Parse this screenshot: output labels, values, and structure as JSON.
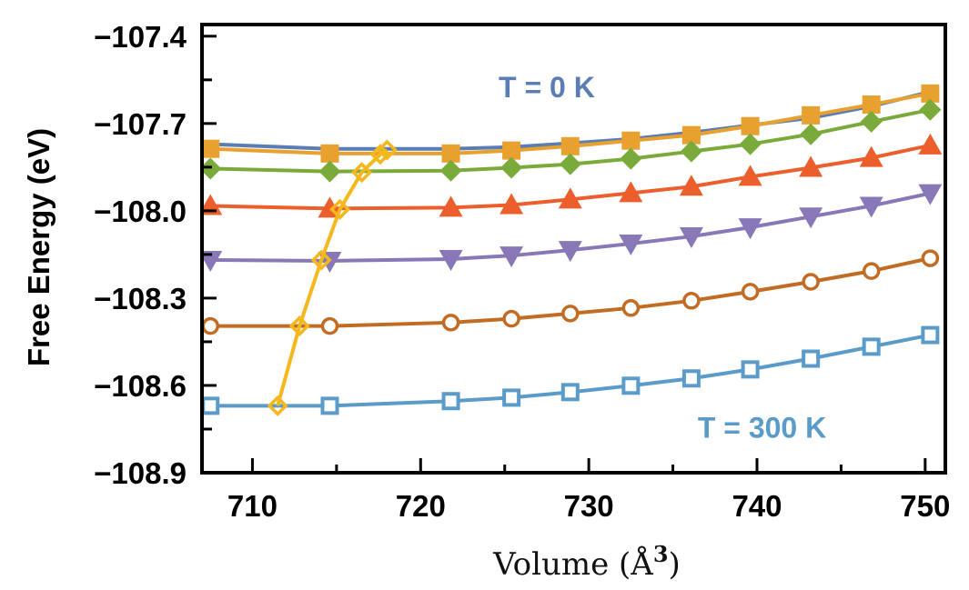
{
  "chart_data": {
    "type": "line",
    "title": "",
    "xlabel": "Volume (Å",
    "xlabel_sup": "3",
    "xlabel_close": ")",
    "ylabel": "Free Energy (eV)",
    "xlim": [
      707.0,
      751.2
    ],
    "ylim": [
      -108.9,
      -107.36
    ],
    "xticks": [
      710,
      720,
      730,
      740,
      750
    ],
    "xtick_labels": [
      "710",
      "720",
      "730",
      "740",
      "750"
    ],
    "xminor": [
      715,
      725,
      735,
      745
    ],
    "yticks": [
      -107.4,
      -107.7,
      -108.0,
      -108.3,
      -108.6,
      -108.9
    ],
    "ytick_labels": [
      "−107.4",
      "−107.7",
      "−108.0",
      "−108.3",
      "−108.6",
      "−108.9"
    ],
    "yminor": [
      -107.55,
      -107.85,
      -108.15,
      -108.45,
      -108.75
    ],
    "grid": false,
    "annotations": [
      {
        "text": "T = 0 K",
        "color": "#5a7db5",
        "x": 727.5,
        "y": -107.61
      },
      {
        "text": "T = 300 K",
        "color": "#5b9bc9",
        "x": 740.3,
        "y": -108.78
      }
    ],
    "x": [
      707.5,
      714.6,
      721.8,
      725.4,
      728.9,
      732.5,
      736.1,
      739.6,
      743.2,
      746.8,
      750.3
    ],
    "series": [
      {
        "marker": "circle-small",
        "color": "#5a7db5",
        "values": [
          -107.771,
          -107.787,
          -107.787,
          -107.781,
          -107.768,
          -107.753,
          -107.731,
          -107.706,
          -107.681,
          -107.641,
          -107.591
        ]
      },
      {
        "marker": "square",
        "color": "#e8a02e",
        "values": [
          -107.787,
          -107.803,
          -107.803,
          -107.793,
          -107.778,
          -107.759,
          -107.74,
          -107.709,
          -107.672,
          -107.635,
          -107.597
        ]
      },
      {
        "marker": "diamond",
        "color": "#7aab3a",
        "values": [
          -107.855,
          -107.865,
          -107.862,
          -107.852,
          -107.84,
          -107.821,
          -107.796,
          -107.771,
          -107.737,
          -107.694,
          -107.653
        ]
      },
      {
        "marker": "triangle-up",
        "color": "#ec5f2d",
        "values": [
          -107.983,
          -107.992,
          -107.989,
          -107.98,
          -107.961,
          -107.939,
          -107.917,
          -107.883,
          -107.852,
          -107.818,
          -107.775
        ]
      },
      {
        "marker": "triangle-down",
        "color": "#8878b8",
        "values": [
          -108.169,
          -108.172,
          -108.166,
          -108.154,
          -108.135,
          -108.113,
          -108.088,
          -108.057,
          -108.02,
          -107.983,
          -107.94
        ]
      },
      {
        "marker": "circle-open",
        "color": "#c26c23",
        "values": [
          -108.396,
          -108.396,
          -108.384,
          -108.371,
          -108.353,
          -108.334,
          -108.309,
          -108.278,
          -108.244,
          -108.207,
          -108.163
        ]
      },
      {
        "marker": "square-open",
        "color": "#5b9bc9",
        "values": [
          -108.67,
          -108.67,
          -108.654,
          -108.642,
          -108.623,
          -108.601,
          -108.576,
          -108.545,
          -108.508,
          -108.467,
          -108.427
        ]
      }
    ],
    "minima_trace": {
      "marker": "diamond-open",
      "color": "#f5b81c",
      "x": [
        711.5,
        712.8,
        714.1,
        715.2,
        716.5,
        717.6,
        718.0
      ],
      "values": [
        -108.67,
        -108.396,
        -108.169,
        -107.995,
        -107.868,
        -107.806,
        -107.791
      ]
    }
  }
}
